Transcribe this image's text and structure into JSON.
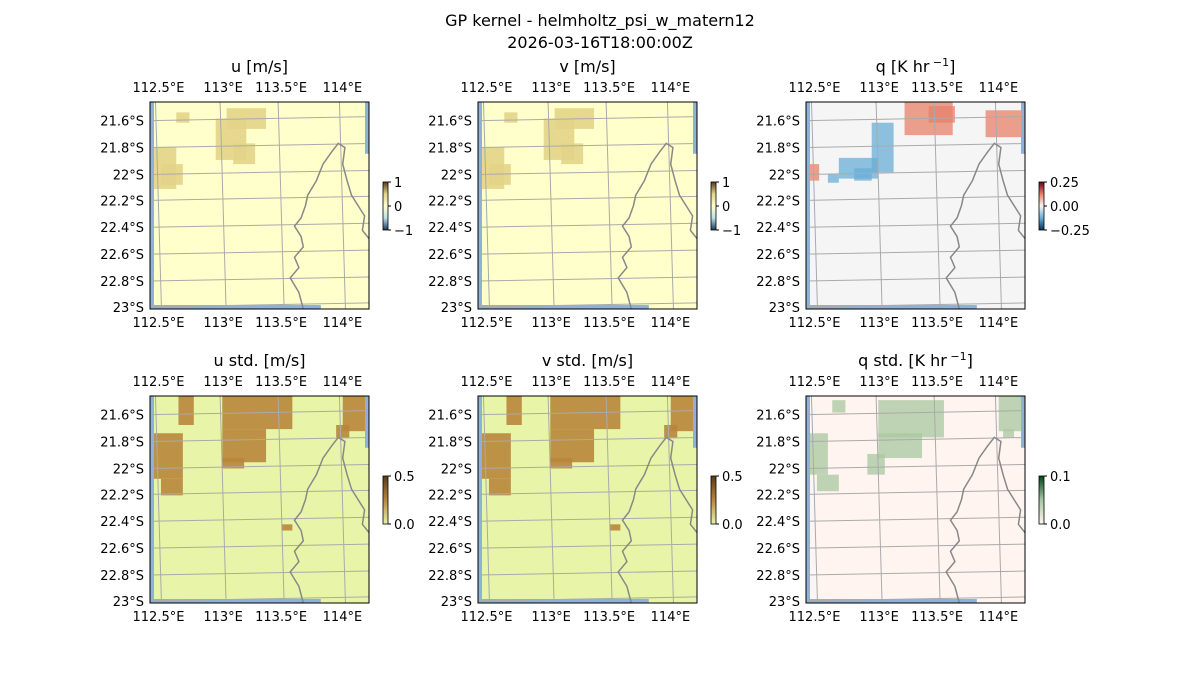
{
  "figure": {
    "title_line1": "GP kernel - helmholtz_psi_w_matern12",
    "title_line2": "2026-03-16T18:00:00Z"
  },
  "chart_data": [
    {
      "type": "heatmap",
      "title": "u [m/s]",
      "x_ticks": [
        "112.5°E",
        "113°E",
        "113.5°E",
        "114°E"
      ],
      "y_ticks": [
        "21.6°S",
        "21.8°S",
        "22°S",
        "22.2°S",
        "22.4°S",
        "22.6°S",
        "22.8°S",
        "23°S"
      ],
      "colorbar_ticks": [
        "1",
        "0",
        "−1"
      ],
      "colorbar_range": [
        -1,
        1
      ],
      "background_color": "#ffffcc",
      "patch_color": "#e3d488"
    },
    {
      "type": "heatmap",
      "title": "v [m/s]",
      "x_ticks": [
        "112.5°E",
        "113°E",
        "113.5°E",
        "114°E"
      ],
      "y_ticks": [
        "21.6°S",
        "21.8°S",
        "22°S",
        "22.2°S",
        "22.4°S",
        "22.6°S",
        "22.8°S",
        "23°S"
      ],
      "colorbar_ticks": [
        "1",
        "0",
        "−1"
      ],
      "colorbar_range": [
        -1,
        1
      ],
      "background_color": "#ffffcc",
      "patch_color": "#e3d488"
    },
    {
      "type": "heatmap",
      "title": "q [K hr",
      "title_sup": "−1",
      "title_end": "]",
      "x_ticks": [
        "112.5°E",
        "113°E",
        "113.5°E",
        "114°E"
      ],
      "y_ticks": [
        "21.6°S",
        "21.8°S",
        "22°S",
        "22.2°S",
        "22.4°S",
        "22.6°S",
        "22.8°S",
        "23°S"
      ],
      "colorbar_ticks": [
        "0.25",
        "0.00",
        "−0.25"
      ],
      "colorbar_range": [
        -0.35,
        0.35
      ],
      "background_color": "#f5f5f5",
      "patch_color_pos": "#e8806a",
      "patch_color_neg": "#6aaed6"
    },
    {
      "type": "heatmap",
      "title": "u std. [m/s]",
      "x_ticks": [
        "112.5°E",
        "113°E",
        "113.5°E",
        "114°E"
      ],
      "y_ticks": [
        "21.6°S",
        "21.8°S",
        "22°S",
        "22.2°S",
        "22.4°S",
        "22.6°S",
        "22.8°S",
        "23°S"
      ],
      "colorbar_ticks": [
        "0.5",
        "0.0"
      ],
      "colorbar_range": [
        0,
        0.5
      ],
      "background_color": "#e8f5a8",
      "patch_color": "#b8863b"
    },
    {
      "type": "heatmap",
      "title": "v std. [m/s]",
      "x_ticks": [
        "112.5°E",
        "113°E",
        "113.5°E",
        "114°E"
      ],
      "y_ticks": [
        "21.6°S",
        "21.8°S",
        "22°S",
        "22.2°S",
        "22.4°S",
        "22.6°S",
        "22.8°S",
        "23°S"
      ],
      "colorbar_ticks": [
        "0.5",
        "0.0"
      ],
      "colorbar_range": [
        0,
        0.5
      ],
      "background_color": "#e8f5a8",
      "patch_color": "#b8863b"
    },
    {
      "type": "heatmap",
      "title": "q std. [K hr",
      "title_sup": "−1",
      "title_end": "]",
      "x_ticks": [
        "112.5°E",
        "113°E",
        "113.5°E",
        "114°E"
      ],
      "y_ticks": [
        "21.6°S",
        "21.8°S",
        "22°S",
        "22.2°S",
        "22.4°S",
        "22.6°S",
        "22.8°S",
        "23°S"
      ],
      "colorbar_ticks": [
        "0.1",
        "0.0"
      ],
      "colorbar_range": [
        0,
        0.1
      ],
      "background_color": "#fff4f0",
      "patch_color": "#a8c8a0"
    }
  ]
}
